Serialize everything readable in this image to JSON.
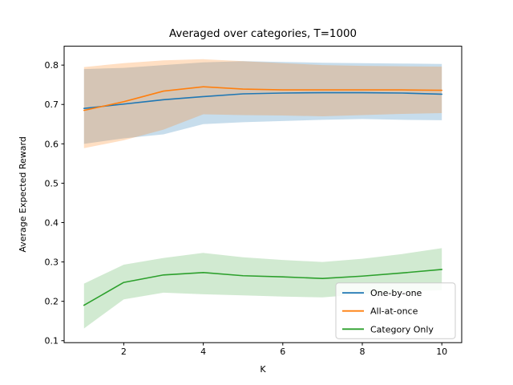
{
  "figure": {
    "background": "#ffffff",
    "spine_color": "#000000",
    "text_color": "#000000"
  },
  "chart_data": {
    "type": "line",
    "title": "Averaged over categories, T=1000",
    "xlabel": "K",
    "ylabel": "Average Expected Reward",
    "grid": false,
    "x": [
      1,
      2,
      3,
      4,
      5,
      6,
      7,
      8,
      9,
      10
    ],
    "xlim": [
      0.5,
      10.5
    ],
    "ylim": [
      0.095,
      0.848
    ],
    "xticks": [
      2,
      4,
      6,
      8,
      10
    ],
    "xtick_labels": [
      "2",
      "4",
      "6",
      "8",
      "10"
    ],
    "yticks": [
      0.1,
      0.2,
      0.3,
      0.4,
      0.5,
      0.6,
      0.7,
      0.8
    ],
    "ytick_labels": [
      "0.1",
      "0.2",
      "0.3",
      "0.4",
      "0.5",
      "0.6",
      "0.7",
      "0.8"
    ],
    "legend": {
      "position": "lower right",
      "border_color": "#cccccc",
      "background": "#ffffff",
      "entries": [
        "One-by-one",
        "All-at-once",
        "Category Only"
      ]
    },
    "series": [
      {
        "name": "One-by-one",
        "color": "#1f77b4",
        "band_alpha": 0.25,
        "values": [
          0.69,
          0.701,
          0.712,
          0.72,
          0.727,
          0.729,
          0.73,
          0.73,
          0.729,
          0.726
        ],
        "band_upper": [
          0.79,
          0.793,
          0.8,
          0.807,
          0.81,
          0.808,
          0.806,
          0.805,
          0.804,
          0.803
        ],
        "band_lower": [
          0.6,
          0.614,
          0.624,
          0.65,
          0.655,
          0.658,
          0.661,
          0.663,
          0.661,
          0.66
        ]
      },
      {
        "name": "All-at-once",
        "color": "#ff7f0e",
        "band_alpha": 0.25,
        "values": [
          0.685,
          0.707,
          0.734,
          0.745,
          0.739,
          0.737,
          0.737,
          0.737,
          0.737,
          0.736
        ],
        "band_upper": [
          0.795,
          0.805,
          0.812,
          0.815,
          0.81,
          0.805,
          0.8,
          0.798,
          0.797,
          0.796
        ],
        "band_lower": [
          0.589,
          0.609,
          0.636,
          0.675,
          0.673,
          0.672,
          0.67,
          0.673,
          0.676,
          0.678
        ]
      },
      {
        "name": "Category Only",
        "color": "#2ca02c",
        "band_alpha": 0.22,
        "values": [
          0.19,
          0.248,
          0.267,
          0.273,
          0.265,
          0.262,
          0.258,
          0.264,
          0.272,
          0.281
        ],
        "band_upper": [
          0.245,
          0.293,
          0.31,
          0.323,
          0.312,
          0.305,
          0.3,
          0.308,
          0.32,
          0.335
        ],
        "band_lower": [
          0.131,
          0.205,
          0.222,
          0.218,
          0.215,
          0.212,
          0.21,
          0.218,
          0.225,
          0.228
        ]
      }
    ]
  }
}
